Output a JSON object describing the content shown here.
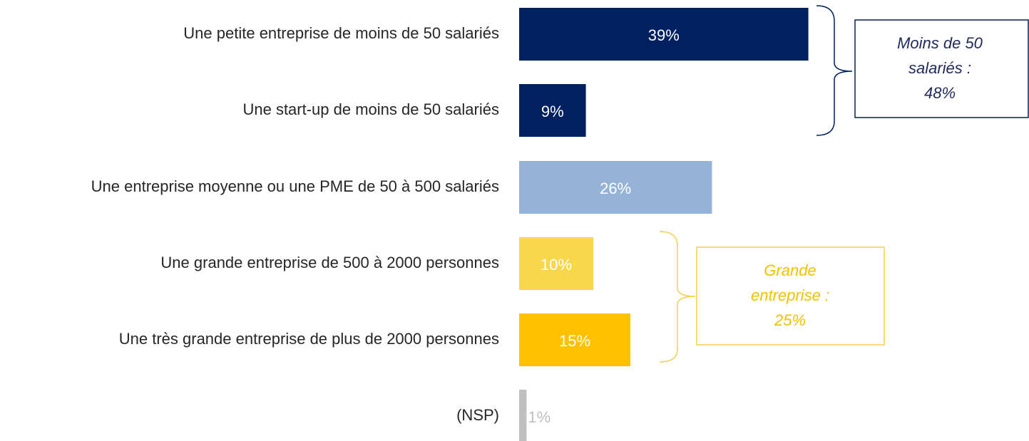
{
  "chart_data": {
    "type": "bar",
    "orientation": "horizontal",
    "categories": [
      "Une petite entreprise de moins de 50 salariés",
      "Une start-up de moins de 50 salariés",
      "Une entreprise moyenne ou une PME de 50 à 500 salariés",
      "Une grande entreprise de 500 à 2000 personnes",
      "Une très grande entreprise de plus de 2000 personnes",
      "(NSP)"
    ],
    "values": [
      39,
      9,
      26,
      10,
      15,
      1
    ],
    "value_labels": [
      "39%",
      "9%",
      "26%",
      "10%",
      "15%",
      "1%"
    ],
    "colors": [
      "#002060",
      "#002060",
      "#95b3d7",
      "#f8d84a",
      "#ffc000",
      "#bfbfbf"
    ],
    "annotations": [
      {
        "lines": [
          "Moins de 50",
          "salariés :",
          "48%"
        ],
        "color": "#1f2a5a"
      },
      {
        "lines": [
          "Grande",
          "entreprise :",
          "25%"
        ],
        "color": "#f5c000"
      }
    ]
  }
}
